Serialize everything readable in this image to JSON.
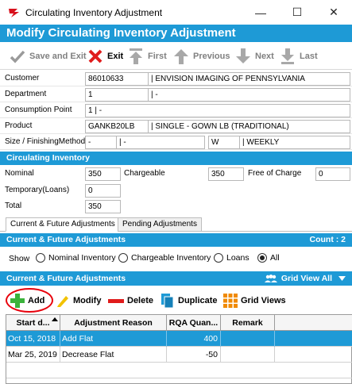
{
  "window": {
    "title": "Circulating Inventory Adjustment",
    "minimize": "—",
    "maximize": "☐",
    "close": "✕"
  },
  "header": {
    "title": "Modify Circulating Inventory Adjustment"
  },
  "toolbar": {
    "save_exit": "Save and Exit",
    "exit": "Exit",
    "first": "First",
    "previous": "Previous",
    "next": "Next",
    "last": "Last"
  },
  "form": {
    "customer": {
      "label": "Customer",
      "code": "86010633",
      "name": "| ENVISION IMAGING OF PENNSYLVANIA"
    },
    "department": {
      "label": "Department",
      "code": "1",
      "name": "| -"
    },
    "consumption_point": {
      "label": "Consumption Point",
      "value": "1  | -"
    },
    "product": {
      "label": "Product",
      "code": "GANKB20LB",
      "name": "| SINGLE - GOWN LB (TRADITIONAL)"
    },
    "size": {
      "label": "Size / FinishingMethod",
      "size_code": "-",
      "size_name": "| -",
      "finish_code": "W",
      "finish_name": "| WEEKLY"
    }
  },
  "circulating": {
    "section_title": "Circulating Inventory",
    "nominal_label": "Nominal",
    "nominal_value": "350",
    "chargeable_label": "Chargeable",
    "chargeable_value": "350",
    "free_label": "Free of Charge",
    "free_value": "0",
    "temporary_label": "Temporary(Loans)",
    "temporary_value": "0",
    "total_label": "Total",
    "total_value": "350"
  },
  "tabs": [
    {
      "label": "Current & Future Adjustments"
    },
    {
      "label": "Pending Adjustments"
    }
  ],
  "adjustments_section": {
    "title": "Current & Future Adjustments",
    "count": "Count : 2"
  },
  "show": {
    "label": "Show",
    "options": [
      "Nominal Inventory",
      "Chargeable Inventory",
      "Loans",
      "All"
    ],
    "selected": "All"
  },
  "grid_section": {
    "title": "Current & Future Adjustments",
    "grid_view": "Grid View All"
  },
  "grid_toolbar": {
    "add": "Add",
    "modify": "Modify",
    "delete": "Delete",
    "duplicate": "Duplicate",
    "grid_views": "Grid Views"
  },
  "grid": {
    "columns": [
      "Start d...",
      "Adjustment Reason",
      "RQA Quan...",
      "Remark"
    ],
    "rows": [
      {
        "start": "Oct 15, 2018",
        "reason": "Add Flat",
        "qty": "400",
        "remark": ""
      },
      {
        "start": "Mar 25, 2019",
        "reason": "Decrease Flat",
        "qty": "-50",
        "remark": ""
      }
    ]
  },
  "colors": {
    "accent": "#1e9ad6",
    "highlight": "#e8000b"
  }
}
